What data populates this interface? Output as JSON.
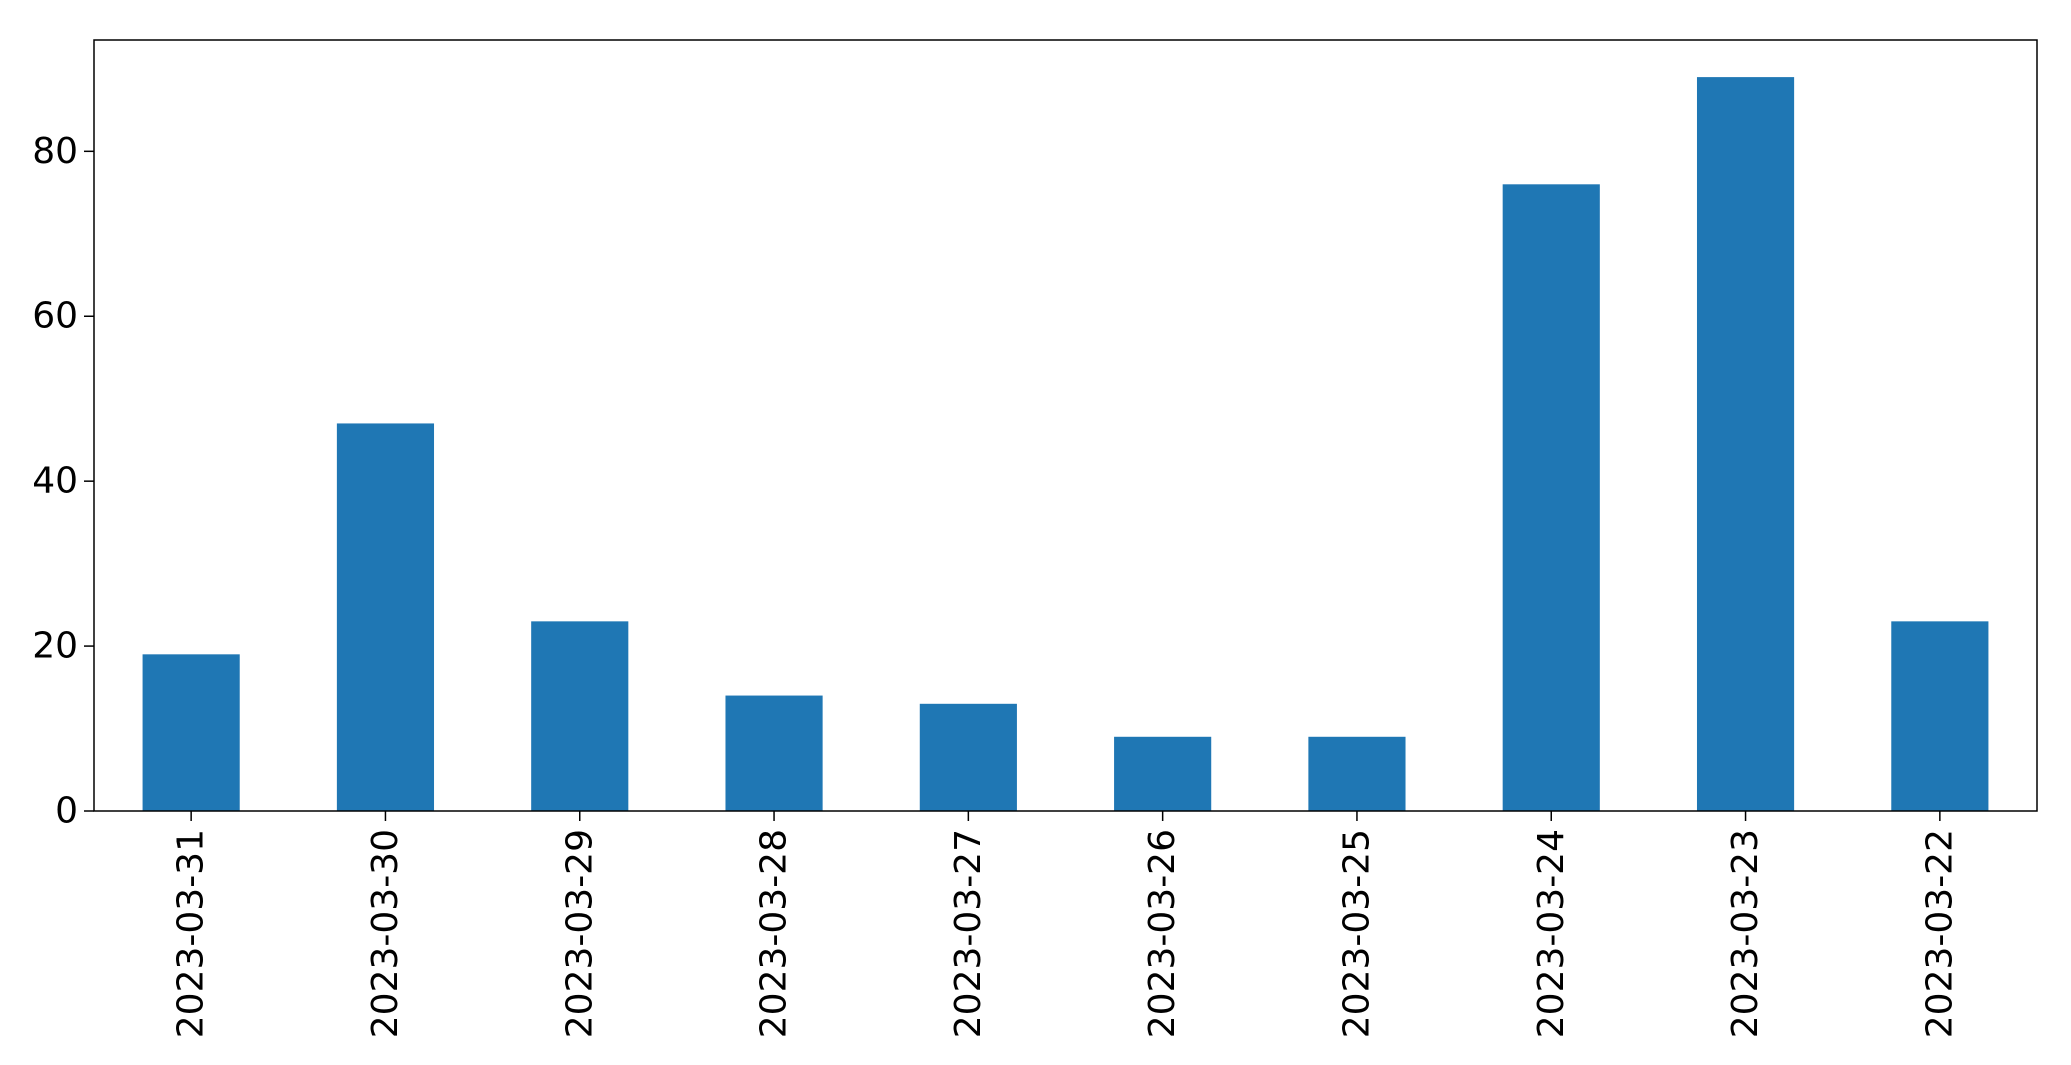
{
  "chart_data": {
    "type": "bar",
    "title": "",
    "xlabel": "",
    "ylabel": "",
    "categories": [
      "2023-03-31",
      "2023-03-30",
      "2023-03-29",
      "2023-03-28",
      "2023-03-27",
      "2023-03-26",
      "2023-03-25",
      "2023-03-24",
      "2023-03-23",
      "2023-03-22"
    ],
    "values": [
      19,
      47,
      23,
      14,
      13,
      9,
      9,
      76,
      89,
      23
    ],
    "ylim": [
      0,
      93.5
    ],
    "yticks": [
      0,
      20,
      40,
      60,
      80
    ],
    "grid": false,
    "legend": "none",
    "bar_color": "#1f77b4"
  }
}
